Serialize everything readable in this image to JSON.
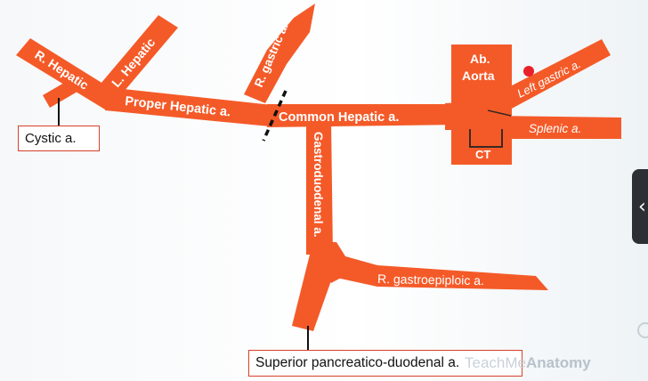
{
  "labels": {
    "r_hepatic": "R. Hepatic",
    "l_hepatic": "L. Hepatic",
    "proper_hepatic": "Proper Hepatic a.",
    "r_gastric": "R. gastric a.",
    "common_hepatic": "Common Hepatic a.",
    "ab_aorta_line1": "Ab.",
    "ab_aorta_line2": "Aorta",
    "left_gastric": "Left gastric a.",
    "splenic": "Splenic a.",
    "ct": "CT",
    "gastroduodenal": "Gastroduodenal a.",
    "r_gastroepiploic": "R. gastroepiploic a."
  },
  "callouts": {
    "cystic": "Cystic a.",
    "superior_pancreaticoduodenal": "Superior pancreatico-duodenal a."
  },
  "watermark": {
    "prefix": "TeachMe",
    "suffix": "Anatomy"
  },
  "side_tab": {
    "icon": "chevron-left-icon",
    "glyph": "‹"
  },
  "colors": {
    "artery": "#f45a28",
    "label_text": "#ffffff",
    "callout_border": "#d8402a",
    "ligation_mark": "#111111",
    "marker_dot": "#e8202a"
  }
}
